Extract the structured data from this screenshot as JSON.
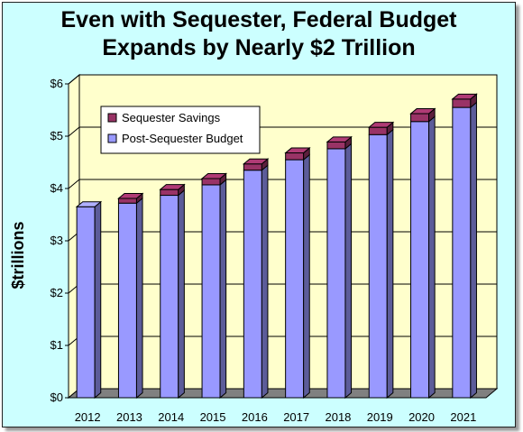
{
  "chart_data": {
    "type": "bar",
    "stacked": true,
    "title_line1": "Even with Sequester, Federal Budget",
    "title_line2": "Expands by Nearly $2 Trillion",
    "xlabel": "",
    "ylabel": "$trillions",
    "categories": [
      "2012",
      "2013",
      "2014",
      "2015",
      "2016",
      "2017",
      "2018",
      "2019",
      "2020",
      "2021"
    ],
    "series": [
      {
        "name": "Post-Sequester Budget",
        "color": "#9999ff",
        "values": [
          3.65,
          3.72,
          3.87,
          4.07,
          4.35,
          4.55,
          4.76,
          5.03,
          5.28,
          5.55
        ]
      },
      {
        "name": "Sequester Savings",
        "color": "#993366",
        "values": [
          0.0,
          0.09,
          0.11,
          0.12,
          0.12,
          0.13,
          0.13,
          0.14,
          0.15,
          0.16
        ]
      }
    ],
    "legend_order": [
      "Sequester Savings",
      "Post-Sequester Budget"
    ],
    "legend_position": "top-left",
    "ylim": [
      0,
      6
    ],
    "yticks": [
      0,
      1,
      2,
      3,
      4,
      5,
      6
    ],
    "ytick_labels": [
      "$0",
      "$1",
      "$2",
      "$3",
      "$4",
      "$5",
      "$6"
    ],
    "grid": true,
    "plot_background": "#ffffcc",
    "floor_color": "#808080"
  }
}
